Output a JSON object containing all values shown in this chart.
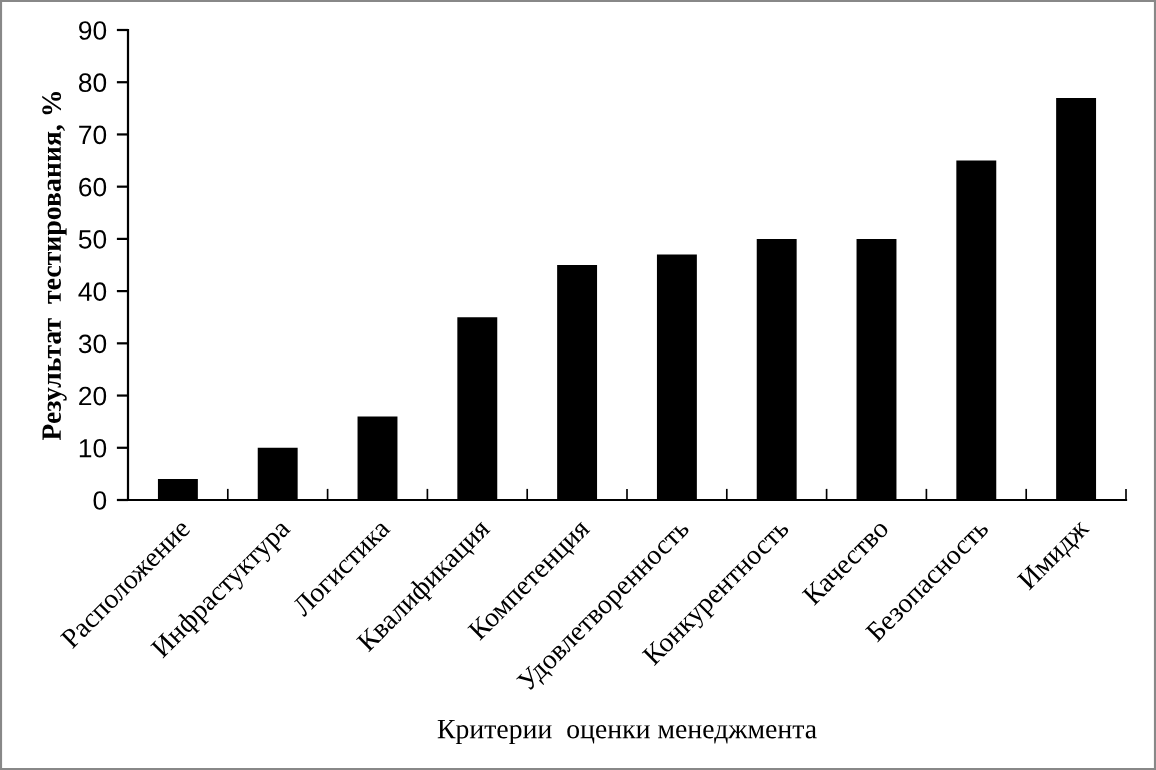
{
  "chart_data": {
    "type": "bar",
    "xlabel": "Критерии  оценки менеджмента",
    "ylabel": "Результат  тестирования, %",
    "categories": [
      "Расположение",
      "Инфрастуктура",
      "Логистика",
      "Квалификация",
      "Компетенция",
      "Удовлетворенность",
      "Конкурентность",
      "Качество",
      "Безопасность",
      "Имидж"
    ],
    "values": [
      4,
      10,
      16,
      35,
      45,
      47,
      50,
      50,
      65,
      77
    ],
    "color": "#000000",
    "ylim": [
      0,
      90
    ],
    "yticks": [
      0,
      10,
      20,
      30,
      40,
      50,
      60,
      70,
      80,
      90
    ],
    "grid": false,
    "legend": false
  }
}
